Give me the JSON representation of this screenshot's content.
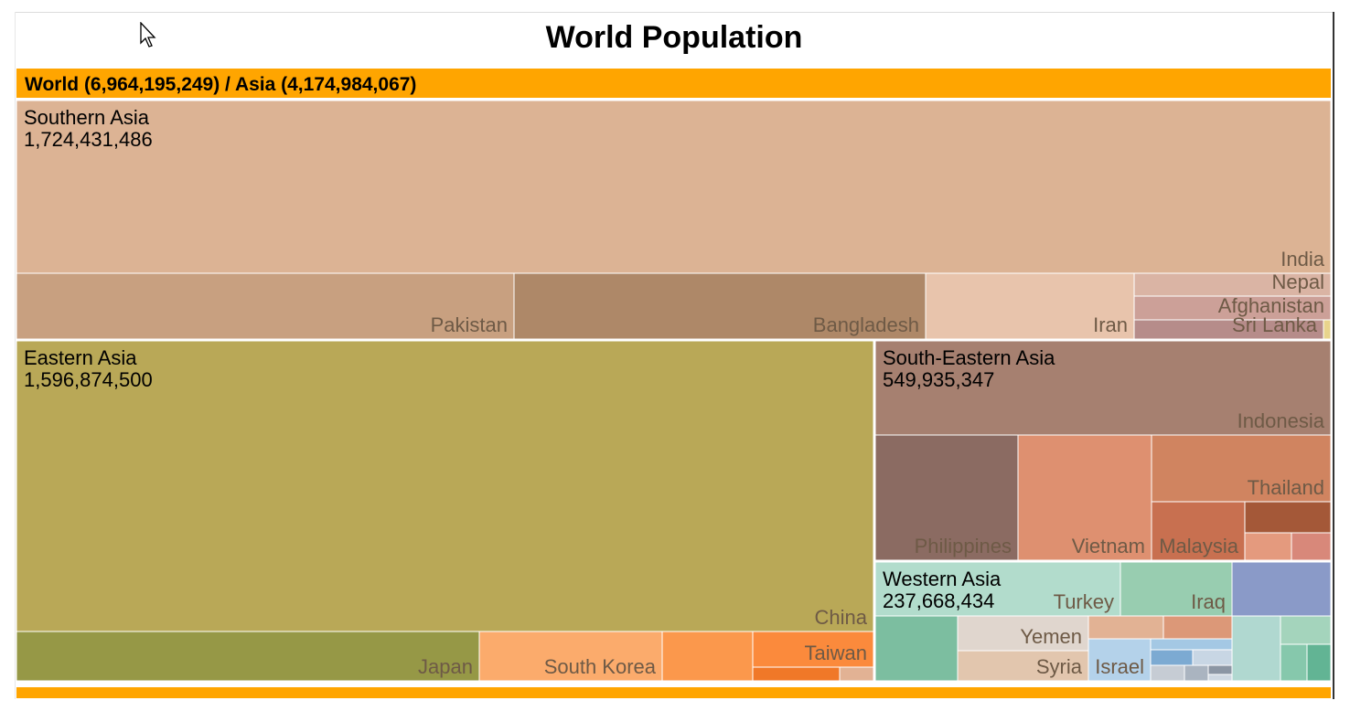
{
  "chart_data": {
    "type": "treemap",
    "title": "World Population",
    "breadcrumb": "World (6,964,195,249) / Asia (4,174,984,067)",
    "root": {
      "name": "World",
      "value": 6964195249
    },
    "current": {
      "name": "Asia",
      "value": 4174984067
    },
    "regions": [
      {
        "name": "Southern Asia",
        "value_label": "1,724,431,486",
        "value": 1724431486,
        "color": "#dcb394",
        "children": [
          {
            "name": "India",
            "color": "#dcb394"
          },
          {
            "name": "Pakistan",
            "color": "#c8a080"
          },
          {
            "name": "Bangladesh",
            "color": "#ae8868"
          },
          {
            "name": "Iran",
            "color": "#e8c4ac"
          },
          {
            "name": "Nepal",
            "color": "#dab4a4"
          },
          {
            "name": "Afghanistan",
            "color": "#cca098"
          },
          {
            "name": "Sri Lanka",
            "color": "#b68c8a"
          },
          {
            "name": "",
            "color": "#e8d48c"
          }
        ]
      },
      {
        "name": "Eastern Asia",
        "value_label": "1,596,874,500",
        "value": 1596874500,
        "color": "#b9a857",
        "children": [
          {
            "name": "China",
            "color": "#b9a857"
          },
          {
            "name": "Japan",
            "color": "#969846"
          },
          {
            "name": "South Korea",
            "color": "#fbab6c"
          },
          {
            "name": "",
            "color": "#fb984c"
          },
          {
            "name": "Taiwan",
            "color": "#fb8a3c"
          },
          {
            "name": "",
            "color": "#f07828"
          },
          {
            "name": "",
            "color": "#e2b294"
          }
        ]
      },
      {
        "name": "South-Eastern Asia",
        "value_label": "549,935,347",
        "value": 549935347,
        "color": "#a68070",
        "children": [
          {
            "name": "Indonesia",
            "color": "#a68070"
          },
          {
            "name": "Philippines",
            "color": "#8b6b62"
          },
          {
            "name": "Vietnam",
            "color": "#de9070"
          },
          {
            "name": "Thailand",
            "color": "#d08460"
          },
          {
            "name": "Malaysia",
            "color": "#c87050"
          },
          {
            "name": "",
            "color": "#a45838"
          },
          {
            "name": "",
            "color": "#e49a7e"
          },
          {
            "name": "",
            "color": "#d8887a"
          }
        ]
      },
      {
        "name": "Western Asia",
        "value_label": "237,668,434",
        "value": 237668434,
        "color": "#b2dccc",
        "children": [
          {
            "name": "Turkey",
            "color": "#b2dccc"
          },
          {
            "name": "Iraq",
            "color": "#98cdb0"
          },
          {
            "name": "",
            "color": "#8a9ac8"
          },
          {
            "name": "",
            "color": "#7cbea0"
          },
          {
            "name": "Yemen",
            "color": "#e0d6ce"
          },
          {
            "name": "Syria",
            "color": "#e2c6ae"
          },
          {
            "name": "",
            "color": "#e2b294"
          },
          {
            "name": "",
            "color": "#dc9878"
          },
          {
            "name": "Israel",
            "color": "#b4d2ea"
          },
          {
            "name": "",
            "color": "#a4c8e4"
          },
          {
            "name": "",
            "color": "#7caad2"
          },
          {
            "name": "",
            "color": "#c8d6e4"
          },
          {
            "name": "",
            "color": "#c6ccd4"
          },
          {
            "name": "",
            "color": "#aab4c0"
          },
          {
            "name": "",
            "color": "#8c96a4"
          },
          {
            "name": "",
            "color": "#cfd8e2"
          },
          {
            "name": "",
            "color": "#b0d8d0"
          },
          {
            "name": "",
            "color": "#a4d4bc"
          },
          {
            "name": "",
            "color": "#86c8ac"
          },
          {
            "name": "",
            "color": "#62b494"
          }
        ]
      }
    ]
  },
  "colors": {
    "breadcrumb_bg": "#ffa500",
    "label_text": "#6e5a46",
    "region_label": "#000000"
  },
  "icons": {
    "cursor": "mouse-pointer-icon"
  }
}
